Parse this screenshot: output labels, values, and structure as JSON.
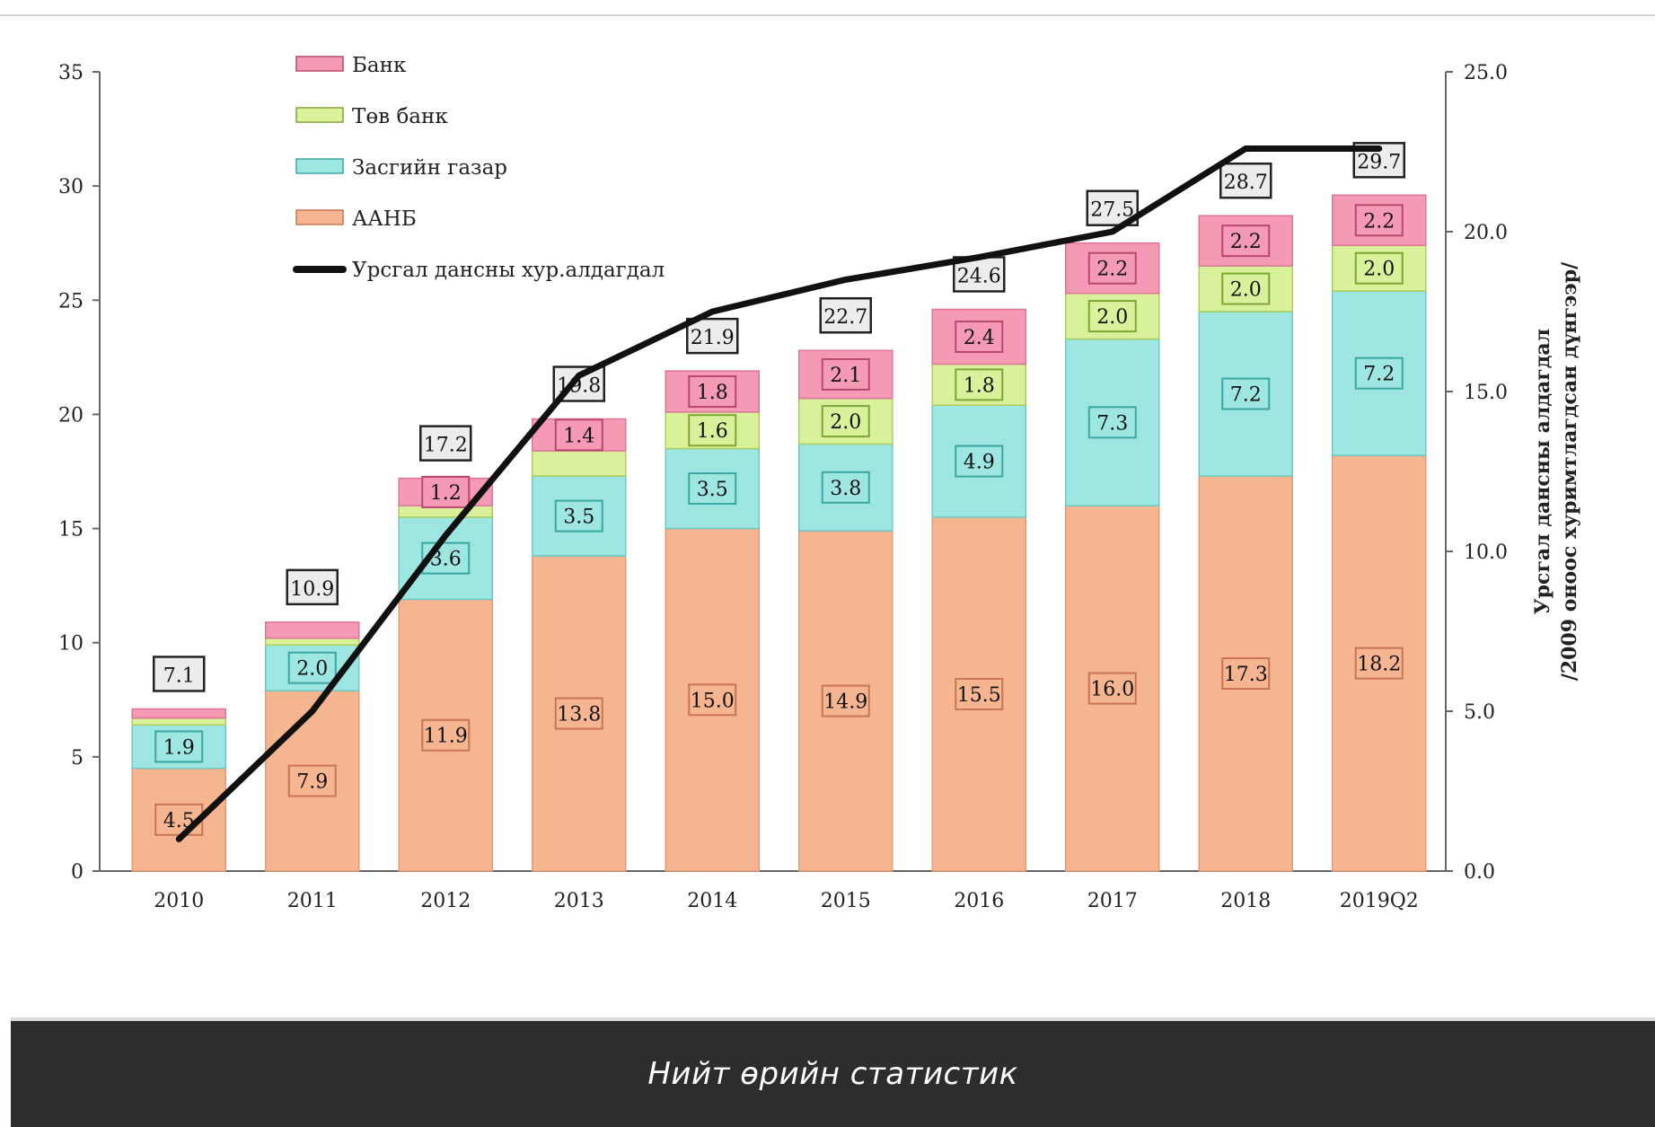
{
  "chart_data": {
    "type": "bar",
    "stacked": true,
    "categories": [
      "2010",
      "2011",
      "2012",
      "2013",
      "2014",
      "2015",
      "2016",
      "2017",
      "2018",
      "2019Q2"
    ],
    "series": [
      {
        "name": "ААНБ",
        "color": "#f5b591",
        "values": [
          4.5,
          7.9,
          11.9,
          13.8,
          15.0,
          14.9,
          15.5,
          16.0,
          17.3,
          18.2
        ],
        "labels": [
          "4.5",
          "7.9",
          "11.9",
          "13.8",
          "15.0",
          "14.9",
          "15.5",
          "16.0",
          "17.3",
          "18.2"
        ]
      },
      {
        "name": "Засгийн газар",
        "color": "#9ee6e2",
        "values": [
          1.9,
          2.0,
          3.6,
          3.5,
          3.5,
          3.8,
          4.9,
          7.3,
          7.2,
          7.2
        ],
        "labels": [
          "1.9",
          "2.0",
          "3.6",
          "3.5",
          "3.5",
          "3.8",
          "4.9",
          "7.3",
          "7.2",
          "7.2"
        ]
      },
      {
        "name": "Төв банк",
        "color": "#d8f19a",
        "values": [
          0.3,
          0.3,
          0.5,
          1.1,
          1.6,
          2.0,
          1.8,
          2.0,
          2.0,
          2.0
        ],
        "labels": [
          "",
          "",
          "",
          "",
          "1.6",
          "2.0",
          "1.8",
          "2.0",
          "2.0",
          "2.0"
        ]
      },
      {
        "name": "Банк",
        "color": "#f49ab4",
        "values": [
          0.4,
          0.7,
          1.2,
          1.4,
          1.8,
          2.1,
          2.4,
          2.2,
          2.2,
          2.2
        ],
        "labels": [
          "",
          "",
          "1.2",
          "1.4",
          "1.8",
          "2.1",
          "2.4",
          "2.2",
          "2.2",
          "2.2"
        ]
      }
    ],
    "totals": [
      "7.1",
      "10.9",
      "17.2",
      "19.8",
      "21.9",
      "22.7",
      "24.6",
      "27.5",
      "28.7",
      "29.7"
    ],
    "line_series": {
      "name": "Урсгал дансны хур.алдагдал",
      "color": "#111111",
      "axis": "right",
      "values": [
        1.0,
        5.0,
        10.5,
        15.5,
        17.5,
        18.5,
        19.2,
        20.0,
        22.6,
        22.6
      ]
    },
    "ylim": [
      0,
      35
    ],
    "yticks": [
      "0",
      "5",
      "10",
      "15",
      "20",
      "25",
      "30",
      "35"
    ],
    "y2lim": [
      0,
      25
    ],
    "y2ticks": [
      "0.0",
      "5.0",
      "10.0",
      "15.0",
      "20.0",
      "25.0"
    ],
    "y2label_line1": "Урсгал дансны алдагдал",
    "y2label_line2": "/2009 оноос хуримтлагдсан дүнгээр/",
    "legend_position": "top-left",
    "grid": false
  },
  "footer": {
    "text": "Нийт өрийн статистик"
  }
}
